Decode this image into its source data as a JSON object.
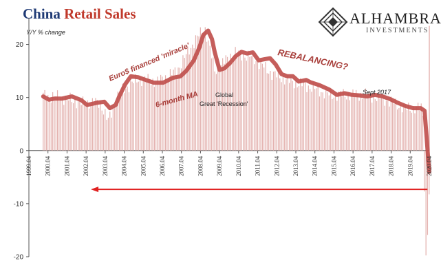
{
  "header": {
    "title_part1": "China ",
    "title_part2": "Retail Sales",
    "y_unit_label": "Y/Y % change"
  },
  "logo": {
    "name": "ALHAMBRA",
    "subtitle": "INVESTMENTS"
  },
  "colors": {
    "bar": "#e3b0ad",
    "ma_line": "#c0504d",
    "arrow": "#e02020",
    "title_blue": "#1f3a75",
    "title_red": "#c0392b"
  },
  "chart_data": {
    "type": "bar",
    "title": "China Retail Sales",
    "ylabel": "Y/Y % change",
    "ylim": [
      -20,
      25
    ],
    "yticks": [
      -20,
      -10,
      0,
      10,
      20
    ],
    "x_range": [
      1999.25,
      2020.25
    ],
    "xtick_labels": [
      "1999.04",
      "2000.04",
      "2001.04",
      "2002.04",
      "2003.04",
      "2004.04",
      "2005.04",
      "2006.04",
      "2007.04",
      "2008.04",
      "2009.04",
      "2010.04",
      "2011.04",
      "2012.04",
      "2013.04",
      "2014.04",
      "2015.04",
      "2016.04",
      "2017.04",
      "2018.04",
      "2019.04",
      "2020.04"
    ],
    "series": [
      {
        "name": "",
        "type": "bar",
        "note": "monthly values, Jan 2000 - Apr 2020",
        "x_start": 2000.0,
        "x_step": 0.0833,
        "anchor_years": [
          2000.0,
          2001.0,
          2002.0,
          2003.0,
          2003.4,
          2004.0,
          2005.0,
          2006.0,
          2007.0,
          2008.0,
          2008.5,
          2009.0,
          2010.0,
          2011.0,
          2012.0,
          2013.0,
          2014.0,
          2015.0,
          2016.0,
          2017.0,
          2018.0,
          2019.0,
          2019.9,
          2020.08,
          2020.16,
          2020.25
        ],
        "anchor_values": [
          10.4,
          10.0,
          9.0,
          9.0,
          5.5,
          11.0,
          13.5,
          13.0,
          15.0,
          21.0,
          23.0,
          15.0,
          18.5,
          17.5,
          14.5,
          13.0,
          12.0,
          10.5,
          10.5,
          10.5,
          9.5,
          8.0,
          8.0,
          -20.5,
          -15.8,
          -7.5
        ]
      },
      {
        "name": "6-month MA",
        "type": "line",
        "points": [
          [
            2000.0,
            10.2
          ],
          [
            2000.3,
            9.6
          ],
          [
            2000.6,
            9.8
          ],
          [
            2001.0,
            9.8
          ],
          [
            2001.5,
            10.2
          ],
          [
            2002.0,
            9.5
          ],
          [
            2002.3,
            8.6
          ],
          [
            2002.8,
            9.0
          ],
          [
            2003.2,
            9.2
          ],
          [
            2003.5,
            8.0
          ],
          [
            2003.8,
            8.6
          ],
          [
            2004.0,
            10.3
          ],
          [
            2004.3,
            12.5
          ],
          [
            2004.6,
            14.0
          ],
          [
            2005.0,
            13.8
          ],
          [
            2005.3,
            13.4
          ],
          [
            2005.8,
            12.8
          ],
          [
            2006.3,
            12.8
          ],
          [
            2006.8,
            13.7
          ],
          [
            2007.2,
            14.0
          ],
          [
            2007.5,
            15.0
          ],
          [
            2007.9,
            17.0
          ],
          [
            2008.2,
            19.5
          ],
          [
            2008.4,
            21.8
          ],
          [
            2008.65,
            22.6
          ],
          [
            2008.85,
            21.0
          ],
          [
            2009.0,
            18.5
          ],
          [
            2009.25,
            15.2
          ],
          [
            2009.5,
            15.5
          ],
          [
            2009.8,
            16.5
          ],
          [
            2010.1,
            17.8
          ],
          [
            2010.4,
            18.6
          ],
          [
            2010.7,
            18.3
          ],
          [
            2011.0,
            18.5
          ],
          [
            2011.3,
            17.0
          ],
          [
            2011.6,
            17.2
          ],
          [
            2011.9,
            17.4
          ],
          [
            2012.2,
            16.2
          ],
          [
            2012.5,
            14.4
          ],
          [
            2012.8,
            14.0
          ],
          [
            2013.1,
            14.0
          ],
          [
            2013.4,
            13.0
          ],
          [
            2013.8,
            13.3
          ],
          [
            2014.0,
            12.9
          ],
          [
            2014.5,
            12.3
          ],
          [
            2015.0,
            11.5
          ],
          [
            2015.4,
            10.5
          ],
          [
            2015.8,
            10.8
          ],
          [
            2016.2,
            10.5
          ],
          [
            2016.6,
            10.4
          ],
          [
            2017.0,
            10.2
          ],
          [
            2017.4,
            10.5
          ],
          [
            2017.8,
            10.2
          ],
          [
            2018.2,
            9.7
          ],
          [
            2018.6,
            9.0
          ],
          [
            2019.0,
            8.4
          ],
          [
            2019.4,
            8.0
          ],
          [
            2019.8,
            8.0
          ],
          [
            2020.0,
            7.5
          ],
          [
            2020.1,
            3.0
          ],
          [
            2020.2,
            -2.0
          ],
          [
            2020.25,
            -4.0
          ]
        ]
      }
    ],
    "annotations": {
      "euro": "Euro$ financed 'miracle'",
      "ma": "6-month MA",
      "global1": "Global",
      "global2": "Great 'Recession'",
      "rebalancing": "REBALANCING?",
      "sept": "Sept 2017"
    },
    "arrow": {
      "from_x": 2020.15,
      "to_x": 2002.5,
      "y": -7.3
    }
  }
}
